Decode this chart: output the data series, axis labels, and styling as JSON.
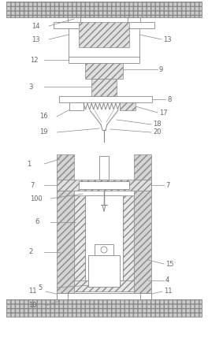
{
  "fig_width": 2.64,
  "fig_height": 4.43,
  "dpi": 100,
  "bg_color": "#ffffff",
  "lc": "#888888",
  "lw": 0.6,
  "fs": 6.0,
  "label_c": "#666666"
}
